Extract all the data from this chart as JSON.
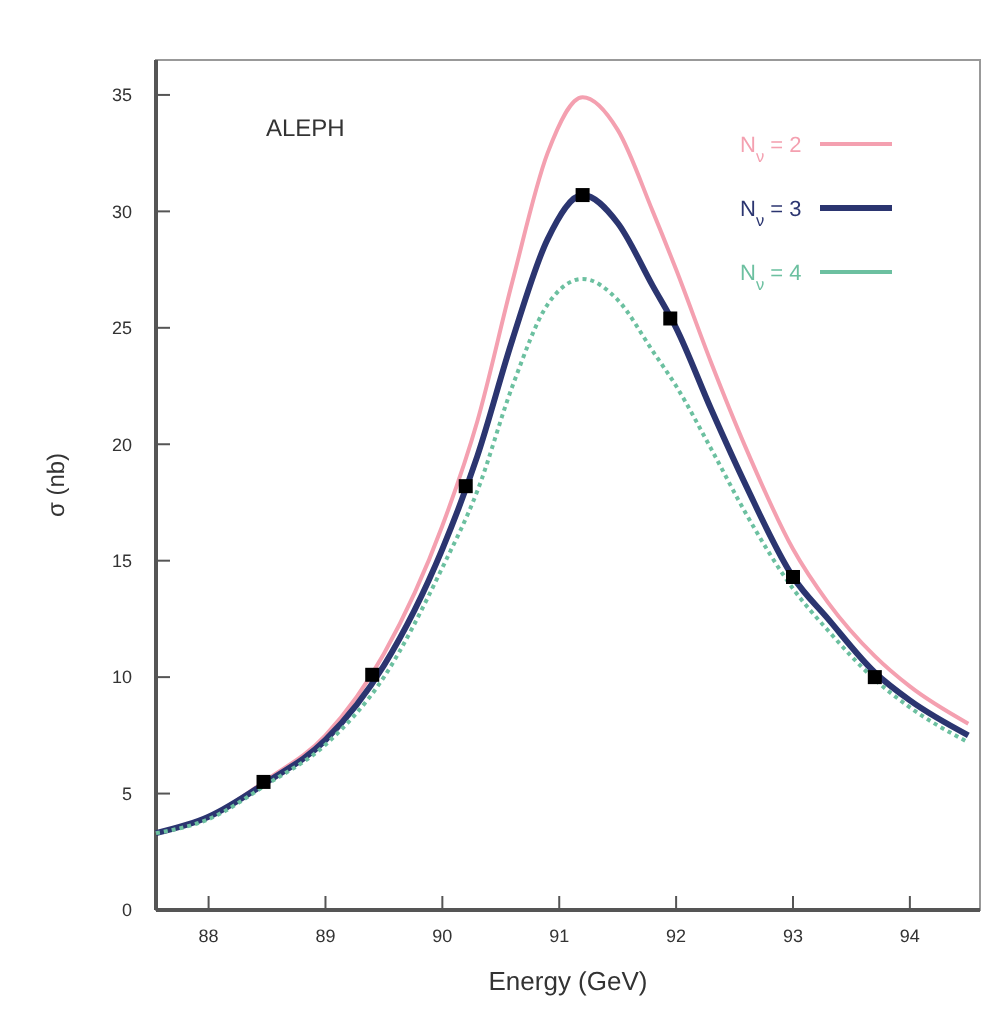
{
  "chart_data": {
    "type": "line",
    "xlabel": "Energy  (GeV)",
    "ylabel": "σ (nb)",
    "annotations": [
      "ALEPH"
    ],
    "xlim": [
      87.55,
      94.6
    ],
    "xticks": [
      88,
      89,
      90,
      91,
      92,
      93,
      94
    ],
    "ylim": [
      0,
      36.5
    ],
    "yticks": [
      0,
      5,
      10,
      15,
      20,
      25,
      30,
      35
    ],
    "grid": false,
    "legend": "top right",
    "series": [
      {
        "name": "N$_{ν}$ = 2",
        "color": "#f4a0b0",
        "line_style": "solid",
        "x": [
          87.55,
          88,
          88.5,
          89,
          89.5,
          90,
          90.3,
          90.6,
          90.9,
          91.2,
          91.5,
          91.8,
          92,
          92.3,
          92.6,
          93,
          93.3,
          93.7,
          94,
          94.5
        ],
        "values": [
          3.3,
          4.0,
          5.6,
          7.5,
          11,
          16.5,
          21,
          27,
          32.5,
          34.9,
          33.5,
          30,
          27.5,
          23.5,
          19.8,
          15.5,
          13.2,
          10.9,
          9.6,
          8.0
        ]
      },
      {
        "name": "N$_{ν}$ = 3",
        "color": "#2b3570",
        "line_style": "solid",
        "x": [
          87.55,
          88,
          88.5,
          89,
          89.5,
          90,
          90.3,
          90.6,
          90.9,
          91.2,
          91.5,
          91.8,
          92,
          92.3,
          92.6,
          93,
          93.3,
          93.7,
          94,
          94.5
        ],
        "values": [
          3.3,
          4.0,
          5.5,
          7.3,
          10.5,
          15.5,
          19.5,
          24.5,
          28.8,
          30.7,
          29.5,
          26.8,
          25.0,
          21.5,
          18.2,
          14.3,
          12.5,
          10.2,
          9.0,
          7.5
        ]
      },
      {
        "name": "N$_{ν}$ = 4",
        "color": "#6cc0a0",
        "line_style": "dotted",
        "x": [
          87.55,
          88,
          88.5,
          89,
          89.5,
          90,
          90.3,
          90.6,
          90.9,
          91.2,
          91.5,
          91.8,
          92,
          92.3,
          92.6,
          93,
          93.3,
          93.7,
          94,
          94.5
        ],
        "values": [
          3.3,
          3.9,
          5.4,
          7.1,
          10,
          14.7,
          18,
          22.5,
          26,
          27.1,
          26.2,
          24,
          22.5,
          19.8,
          17,
          13.8,
          12,
          9.9,
          8.7,
          7.2
        ]
      },
      {
        "type": "scatter",
        "color": "#000000",
        "marker": "square",
        "x": [
          88.47,
          89.4,
          90.2,
          91.2,
          91.95,
          93.0,
          93.7
        ],
        "values": [
          5.5,
          10.1,
          18.2,
          30.7,
          25.4,
          14.3,
          10.0
        ]
      }
    ]
  }
}
